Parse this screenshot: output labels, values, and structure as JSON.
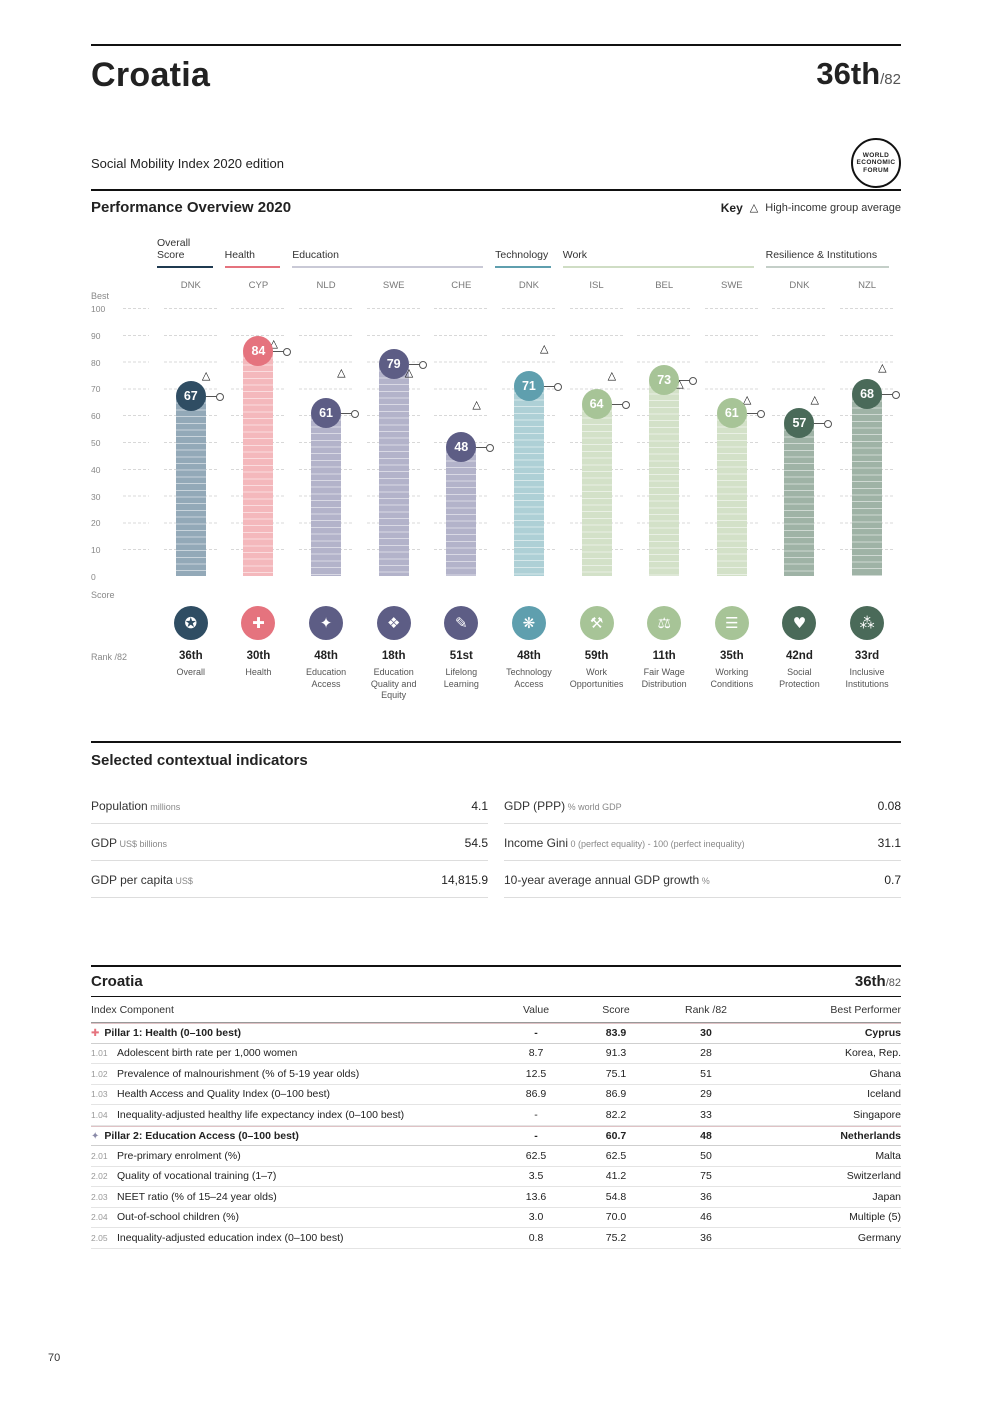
{
  "page": {
    "country": "Croatia",
    "rank": "36th",
    "rank_total": "/82",
    "edition": "Social Mobility Index 2020 edition",
    "page_number": "70"
  },
  "logo": {
    "line1": "WORLD",
    "line2": "ECONOMIC",
    "line3": "FORUM"
  },
  "overview": {
    "title": "Performance Overview 2020",
    "key_label": "Key",
    "key_glyph": "△",
    "key_text": "High-income group average",
    "best_label": "Best",
    "score_label": "Score",
    "rank_label": "Rank /82"
  },
  "chart_data": {
    "type": "bar",
    "ylim": [
      0,
      100
    ],
    "yticks": [
      100,
      90,
      80,
      70,
      60,
      50,
      40,
      30,
      20,
      10,
      0
    ],
    "legend": {
      "marker": "triangle",
      "label": "High-income group average"
    },
    "groups": [
      {
        "label": "Overall Score",
        "span": 1,
        "color": "overall"
      },
      {
        "label": "Health",
        "span": 1,
        "color": "health"
      },
      {
        "label": "Education",
        "span": 3,
        "color": "education"
      },
      {
        "label": "Technology",
        "span": 1,
        "color": "technology"
      },
      {
        "label": "Work",
        "span": 3,
        "color": "work"
      },
      {
        "label": "Resilience & Institutions",
        "span": 2,
        "color": "resilience"
      }
    ],
    "palette": {
      "overall": {
        "bar": "#93a9b8",
        "badge": "#2f4d63",
        "line": "#1f3a50"
      },
      "health": {
        "bar": "#f4b8bc",
        "badge": "#e5737e",
        "line": "#e5737e"
      },
      "education": {
        "bar": "#b3b3ca",
        "badge": "#5d5d85",
        "line": "#c9c9d6"
      },
      "technology": {
        "bar": "#aed0d6",
        "badge": "#5f9fae",
        "line": "#5f9fae"
      },
      "work": {
        "bar": "#d3e1c8",
        "badge": "#a7c497",
        "line": "#cfddc4"
      },
      "resilience": {
        "bar": "#9fb3a6",
        "badge": "#4a6a59",
        "line": "#c4cfc8"
      }
    },
    "columns": [
      {
        "group": "overall",
        "best": "DNK",
        "score": 67,
        "high_income_avg": 75,
        "rank": "36th",
        "pillar": "Overall",
        "icon": "medal-icon",
        "glyph": "✪"
      },
      {
        "group": "health",
        "best": "CYP",
        "score": 84,
        "high_income_avg": 87,
        "rank": "30th",
        "pillar": "Health",
        "icon": "health-cross-icon",
        "glyph": "✚"
      },
      {
        "group": "education",
        "best": "NLD",
        "score": 61,
        "high_income_avg": 76,
        "rank": "48th",
        "pillar": "Education Access",
        "icon": "graduation-cap-icon",
        "glyph": "✦"
      },
      {
        "group": "education",
        "best": "SWE",
        "score": 79,
        "high_income_avg": 76,
        "rank": "18th",
        "pillar": "Education Quality and Equity",
        "icon": "award-ribbon-icon",
        "glyph": "❖"
      },
      {
        "group": "education",
        "best": "CHE",
        "score": 48,
        "high_income_avg": 64,
        "rank": "51st",
        "pillar": "Lifelong Learning",
        "icon": "book-person-icon",
        "glyph": "✎"
      },
      {
        "group": "technology",
        "best": "DNK",
        "score": 71,
        "high_income_avg": 85,
        "rank": "48th",
        "pillar": "Technology Access",
        "icon": "network-icon",
        "glyph": "❋"
      },
      {
        "group": "work",
        "best": "ISL",
        "score": 64,
        "high_income_avg": 75,
        "rank": "59th",
        "pillar": "Work Opportunities",
        "icon": "wrench-icon",
        "glyph": "⚒"
      },
      {
        "group": "work",
        "best": "BEL",
        "score": 73,
        "high_income_avg": 72,
        "rank": "11th",
        "pillar": "Fair Wage Distribution",
        "icon": "fair-wage-icon",
        "glyph": "⚖"
      },
      {
        "group": "work",
        "best": "SWE",
        "score": 61,
        "high_income_avg": 66,
        "rank": "35th",
        "pillar": "Working Conditions",
        "icon": "document-icon",
        "glyph": "☰"
      },
      {
        "group": "resilience",
        "best": "DNK",
        "score": 57,
        "high_income_avg": 66,
        "rank": "42nd",
        "pillar": "Social Protection",
        "icon": "hand-heart-icon",
        "glyph": "♥"
      },
      {
        "group": "resilience",
        "best": "NZL",
        "score": 68,
        "high_income_avg": 78,
        "rank": "33rd",
        "pillar": "Inclusive Institutions",
        "icon": "institution-icon",
        "glyph": "⁂"
      }
    ]
  },
  "context": {
    "title": "Selected contextual indicators",
    "left": [
      {
        "label": "Population",
        "unit": "millions",
        "value": "4.1"
      },
      {
        "label": "GDP",
        "unit": "US$ billions",
        "value": "54.5"
      },
      {
        "label": "GDP per capita",
        "unit": "US$",
        "value": "14,815.9"
      }
    ],
    "right": [
      {
        "label": "GDP (PPP)",
        "unit": "% world GDP",
        "value": "0.08"
      },
      {
        "label": "Income Gini",
        "unit": "0 (perfect equality) - 100 (perfect inequality)",
        "value": "31.1"
      },
      {
        "label": "10-year average annual GDP growth",
        "unit": "%",
        "value": "0.7"
      }
    ]
  },
  "table": {
    "country": "Croatia",
    "rank": "36th",
    "rank_total": "/82",
    "header": {
      "component": "Index Component",
      "value": "Value",
      "score": "Score",
      "rank": "Rank /82",
      "best": "Best Performer"
    },
    "rows": [
      {
        "type": "pillar",
        "num": "",
        "glyph": "✚",
        "glyph_color": "#e5737e",
        "icon": "health-cross-icon",
        "label": "Pillar 1: Health (0–100 best)",
        "value": "-",
        "score": "83.9",
        "rank": "30",
        "best": "Cyprus"
      },
      {
        "type": "item",
        "num": "1.01",
        "label": "Adolescent birth rate per 1,000 women",
        "value": "8.7",
        "score": "91.3",
        "rank": "28",
        "best": "Korea, Rep."
      },
      {
        "type": "item",
        "num": "1.02",
        "label": "Prevalence of malnourishment (% of 5-19 year olds)",
        "value": "12.5",
        "score": "75.1",
        "rank": "51",
        "best": "Ghana"
      },
      {
        "type": "item",
        "num": "1.03",
        "label": "Health Access and Quality Index (0–100 best)",
        "value": "86.9",
        "score": "86.9",
        "rank": "29",
        "best": "Iceland"
      },
      {
        "type": "item",
        "num": "1.04",
        "label": "Inequality-adjusted healthy life expectancy index (0–100 best)",
        "value": "-",
        "score": "82.2",
        "rank": "33",
        "best": "Singapore"
      },
      {
        "type": "pillar",
        "num": "",
        "glyph": "✦",
        "glyph_color": "#8a8aa8",
        "icon": "graduation-cap-icon",
        "label": "Pillar 2: Education Access (0–100 best)",
        "value": "-",
        "score": "60.7",
        "rank": "48",
        "best": "Netherlands"
      },
      {
        "type": "item",
        "num": "2.01",
        "label": "Pre-primary enrolment (%)",
        "value": "62.5",
        "score": "62.5",
        "rank": "50",
        "best": "Malta"
      },
      {
        "type": "item",
        "num": "2.02",
        "label": "Quality of vocational training (1–7)",
        "value": "3.5",
        "score": "41.2",
        "rank": "75",
        "best": "Switzerland"
      },
      {
        "type": "item",
        "num": "2.03",
        "label": "NEET ratio (% of 15–24 year olds)",
        "value": "13.6",
        "score": "54.8",
        "rank": "36",
        "best": "Japan"
      },
      {
        "type": "item",
        "num": "2.04",
        "label": "Out-of-school children (%)",
        "value": "3.0",
        "score": "70.0",
        "rank": "46",
        "best": "Multiple (5)"
      },
      {
        "type": "item",
        "num": "2.05",
        "label": "Inequality-adjusted education index (0–100 best)",
        "value": "0.8",
        "score": "75.2",
        "rank": "36",
        "best": "Germany"
      }
    ]
  }
}
